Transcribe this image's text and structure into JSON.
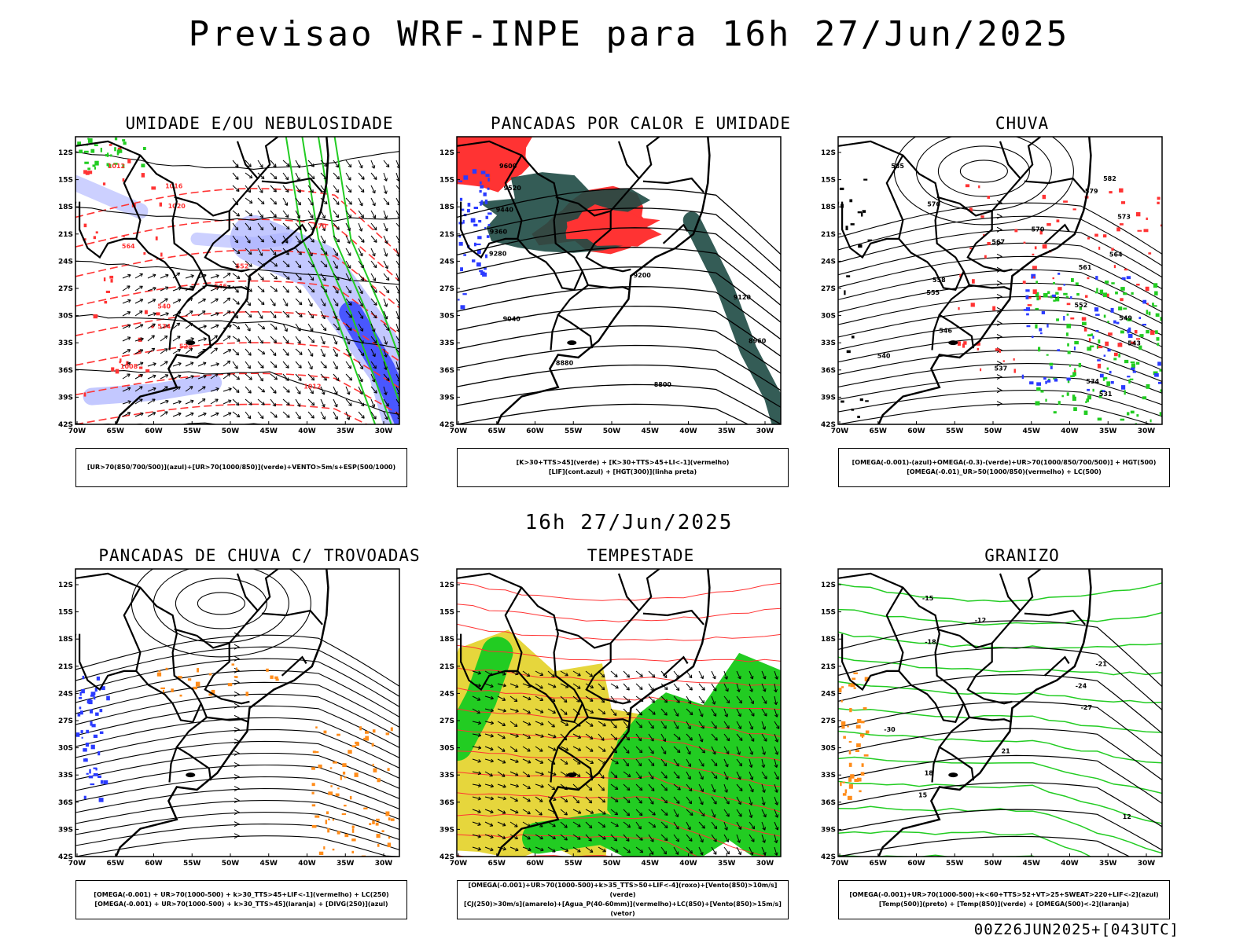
{
  "header": {
    "title": "Previsao WRF-INPE  para 16h 27/Jun/2025"
  },
  "middle_label": "16h 27/Jun/2025",
  "footer_label": "00Z26JUN2025+[043UTC]",
  "axes": {
    "lat_ticks": [
      "12S",
      "15S",
      "18S",
      "21S",
      "24S",
      "27S",
      "30S",
      "33S",
      "36S",
      "39S",
      "42S"
    ],
    "lon_ticks": [
      "70W",
      "65W",
      "60W",
      "55W",
      "50W",
      "45W",
      "40W",
      "35W",
      "30W"
    ]
  },
  "colors": {
    "blue": "#2b3bff",
    "green": "#22cc22",
    "red": "#ff3333",
    "orange": "#ff8c1a",
    "yellow": "#e6d63c",
    "darkteal": "#1e4a44",
    "lightblue": "#aab0ff"
  },
  "panels": [
    {
      "id": "umidade",
      "title": "UMIDADE E/OU NEBULOSIDADE",
      "legend": [
        "[UR>70(850/700/500)](azul)+[UR>70(1000/850)](verde)+VENTO>5m/s+ESP(500/1000)"
      ],
      "labels": [
        "1012",
        "1016",
        "1020",
        "570",
        "564",
        "552",
        "546",
        "540",
        "534",
        "528",
        "1008",
        "1012"
      ]
    },
    {
      "id": "pancadas_calor",
      "title": "PANCADAS POR CALOR E UMIDADE",
      "legend": [
        "[K>30+TTS>45](verde) + [K>30+TTS>45+LI<-1](vermelho)",
        "[LIF](cont.azul) + [HGT(300)](linha preta)"
      ],
      "labels": [
        "9600",
        "9520",
        "9440",
        "9360",
        "9280",
        "9200",
        "9120",
        "9040",
        "8960",
        "8880",
        "8800"
      ]
    },
    {
      "id": "chuva",
      "title": "CHUVA",
      "legend": [
        "[OMEGA(-0.001)-(azul)+OMEGA(-0.3)-(verde)+UR>70(1000/850/700/500)] + HGT(500)",
        "[OMEGA(-0.01)_UR>50(1000/850)(vermelho) + LC(500)"
      ],
      "labels": [
        "585",
        "582",
        "579",
        "576",
        "573",
        "570",
        "567",
        "564",
        "561",
        "558",
        "555",
        "552",
        "549",
        "546",
        "543",
        "540",
        "537",
        "534",
        "531"
      ]
    },
    {
      "id": "pancadas_trovoadas",
      "title": "PANCADAS DE CHUVA C/ TROVOADAS",
      "legend": [
        "[OMEGA(-0.001) + UR>70(1000-500) + k>30_TTS>45+LIF<-1](vermelho) + LC(250)",
        "[OMEGA(-0.001) + UR>70(1000-500) + k>30_TTS>45](laranja) + [DIVG(250)](azul)"
      ],
      "labels": []
    },
    {
      "id": "tempestade",
      "title": "TEMPESTADE",
      "legend": [
        "[OMEGA(-0.001)+UR>70(1000-500)+k>35_TTS>50+LIF<-4](roxo)+[Vento(850)>10m/s](verde)",
        "[CJ(250)>30m/s](amarelo)+[Agua_P(40-60mm)](vermelho)+LC(850)+[Vento(850)>15m/s](vetor)"
      ],
      "labels": []
    },
    {
      "id": "granizo",
      "title": "GRANIZO",
      "legend": [
        "[OMEGA(-0.001)+UR>70(1000-500)+k<60+TTS>52+VT>25+SWEAT>220+LIF<-2](azul)",
        "[Temp(500)](preto) + [Temp(850)](verde) + [OMEGA(500)<-2](laranja)"
      ],
      "labels": [
        "-15",
        "-12",
        "-18",
        "-21",
        "-24",
        "-27",
        "-30",
        "21",
        "18",
        "15",
        "12"
      ]
    }
  ]
}
